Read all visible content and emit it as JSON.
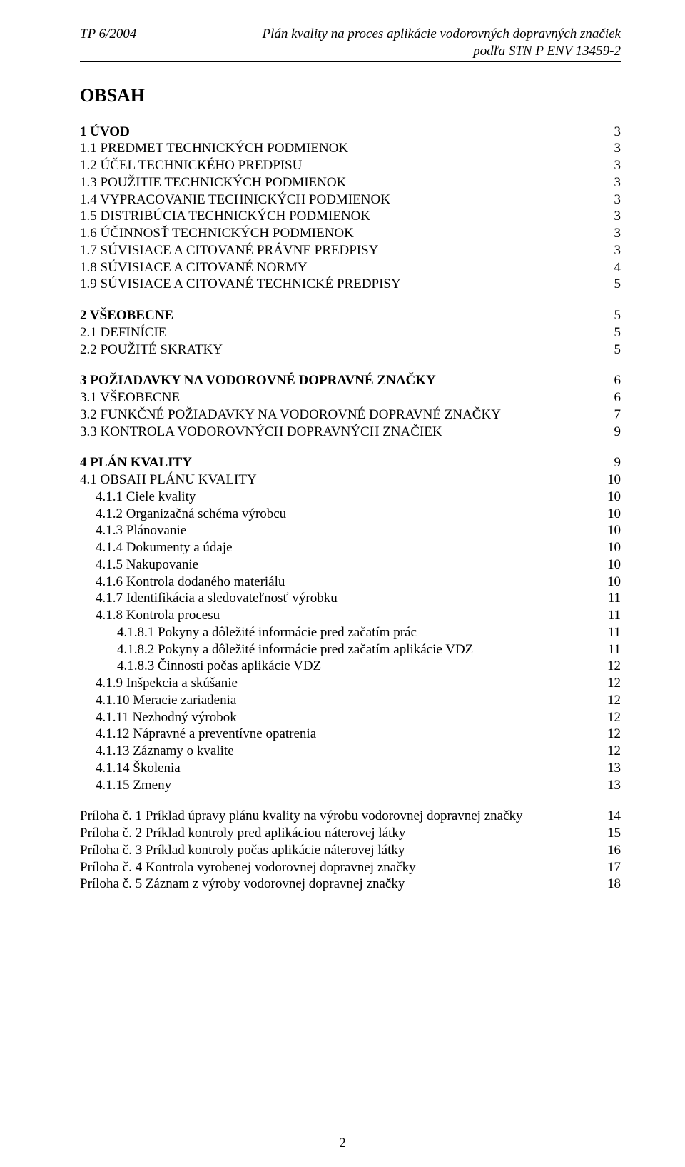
{
  "header": {
    "left": "TP 6/2004",
    "right1": "Plán kvality na proces aplikácie vodorovných dopravných značiek",
    "right2": "podľa STN P ENV 13459-2"
  },
  "title": "OBSAH",
  "toc": [
    {
      "block": [
        {
          "label": "1  ÚVOD",
          "page": "3",
          "bold": true,
          "indent": 0
        },
        {
          "label": "1.1 PREDMET TECHNICKÝCH PODMIENOK",
          "page": "3",
          "indent": 0
        },
        {
          "label": "1.2 ÚČEL TECHNICKÉHO PREDPISU",
          "page": "3",
          "indent": 0
        },
        {
          "label": "1.3 POUŽITIE TECHNICKÝCH PODMIENOK",
          "page": "3",
          "indent": 0
        },
        {
          "label": "1.4 VYPRACOVANIE TECHNICKÝCH PODMIENOK",
          "page": "3",
          "indent": 0
        },
        {
          "label": "1.5 DISTRIBÚCIA TECHNICKÝCH PODMIENOK",
          "page": "3",
          "indent": 0
        },
        {
          "label": "1.6 ÚČINNOSŤ TECHNICKÝCH PODMIENOK",
          "page": "3",
          "indent": 0
        },
        {
          "label": "1.7 SÚVISIACE A CITOVANÉ PRÁVNE PREDPISY",
          "page": "3",
          "indent": 0
        },
        {
          "label": "1.8 SÚVISIACE A CITOVANÉ NORMY",
          "page": "4",
          "indent": 0
        },
        {
          "label": "1.9 SÚVISIACE A CITOVANÉ TECHNICKÉ PREDPISY",
          "page": "5",
          "indent": 0
        }
      ]
    },
    {
      "block": [
        {
          "label": "2  VŠEOBECNE",
          "page": "5",
          "bold": true,
          "indent": 0
        },
        {
          "label": "2.1 DEFINÍCIE",
          "page": "5",
          "indent": 0
        },
        {
          "label": "2.2 POUŽITÉ SKRATKY",
          "page": "5",
          "indent": 0
        }
      ]
    },
    {
      "block": [
        {
          "label": "3  POŽIADAVKY NA VODOROVNÉ DOPRAVNÉ ZNAČKY",
          "page": "6",
          "bold": true,
          "indent": 0
        },
        {
          "label": "3.1 VŠEOBECNE",
          "page": "6",
          "indent": 0
        },
        {
          "label": "3.2 FUNKČNÉ POŽIADAVKY NA VODOROVNÉ DOPRAVNÉ ZNAČKY",
          "page": "7",
          "indent": 0
        },
        {
          "label": "3.3 KONTROLA VODOROVNÝCH DOPRAVNÝCH ZNAČIEK",
          "page": "9",
          "indent": 0
        }
      ]
    },
    {
      "block": [
        {
          "label": "4  PLÁN KVALITY",
          "page": "9",
          "bold": true,
          "indent": 0
        },
        {
          "label": "4.1 OBSAH PLÁNU KVALITY",
          "page": "10",
          "indent": 0
        },
        {
          "label": "4.1.1 Ciele kvality",
          "page": "10",
          "indent": 1
        },
        {
          "label": "4.1.2 Organizačná schéma výrobcu",
          "page": "10",
          "indent": 1
        },
        {
          "label": "4.1.3 Plánovanie",
          "page": "10",
          "indent": 1
        },
        {
          "label": "4.1.4 Dokumenty a údaje",
          "page": "10",
          "indent": 1
        },
        {
          "label": "4.1.5 Nakupovanie",
          "page": "10",
          "indent": 1
        },
        {
          "label": "4.1.6 Kontrola dodaného materiálu",
          "page": "10",
          "indent": 1
        },
        {
          "label": "4.1.7 Identifikácia a sledovateľnosť výrobku",
          "page": "11",
          "indent": 1
        },
        {
          "label": "4.1.8 Kontrola procesu",
          "page": "11",
          "indent": 1
        },
        {
          "label": "4.1.8.1 Pokyny a dôležité informácie pred začatím prác",
          "page": "11",
          "indent": 2
        },
        {
          "label": "4.1.8.2 Pokyny a dôležité informácie pred začatím aplikácie VDZ",
          "page": "11",
          "indent": 2
        },
        {
          "label": "4.1.8.3 Činnosti počas aplikácie VDZ",
          "page": "12",
          "indent": 2
        },
        {
          "label": "4.1.9 Inšpekcia a skúšanie",
          "page": "12",
          "indent": 1
        },
        {
          "label": "4.1.10 Meracie zariadenia",
          "page": "12",
          "indent": 1
        },
        {
          "label": "4.1.11 Nezhodný výrobok",
          "page": "12",
          "indent": 1
        },
        {
          "label": "4.1.12 Nápravné a preventívne opatrenia",
          "page": "12",
          "indent": 1
        },
        {
          "label": "4.1.13 Záznamy o kvalite",
          "page": "12",
          "indent": 1
        },
        {
          "label": "4.1.14 Školenia",
          "page": "13",
          "indent": 1
        },
        {
          "label": "4.1.15 Zmeny",
          "page": "13",
          "indent": 1
        }
      ]
    }
  ],
  "appendices": [
    {
      "label": "Príloha č. 1 Príklad úpravy plánu kvality na výrobu vodorovnej dopravnej značky",
      "page": "14"
    },
    {
      "label": "Príloha č. 2 Príklad kontroly pred aplikáciou náterovej látky",
      "page": "15"
    },
    {
      "label": "Príloha č. 3 Príklad kontroly počas aplikácie náterovej látky",
      "page": "16"
    },
    {
      "label": "Príloha č. 4 Kontrola vyrobenej vodorovnej dopravnej značky",
      "page": "17"
    },
    {
      "label": "Príloha č. 5 Záznam z výroby vodorovnej dopravnej značky",
      "page": "18"
    }
  ],
  "page_number": "2"
}
